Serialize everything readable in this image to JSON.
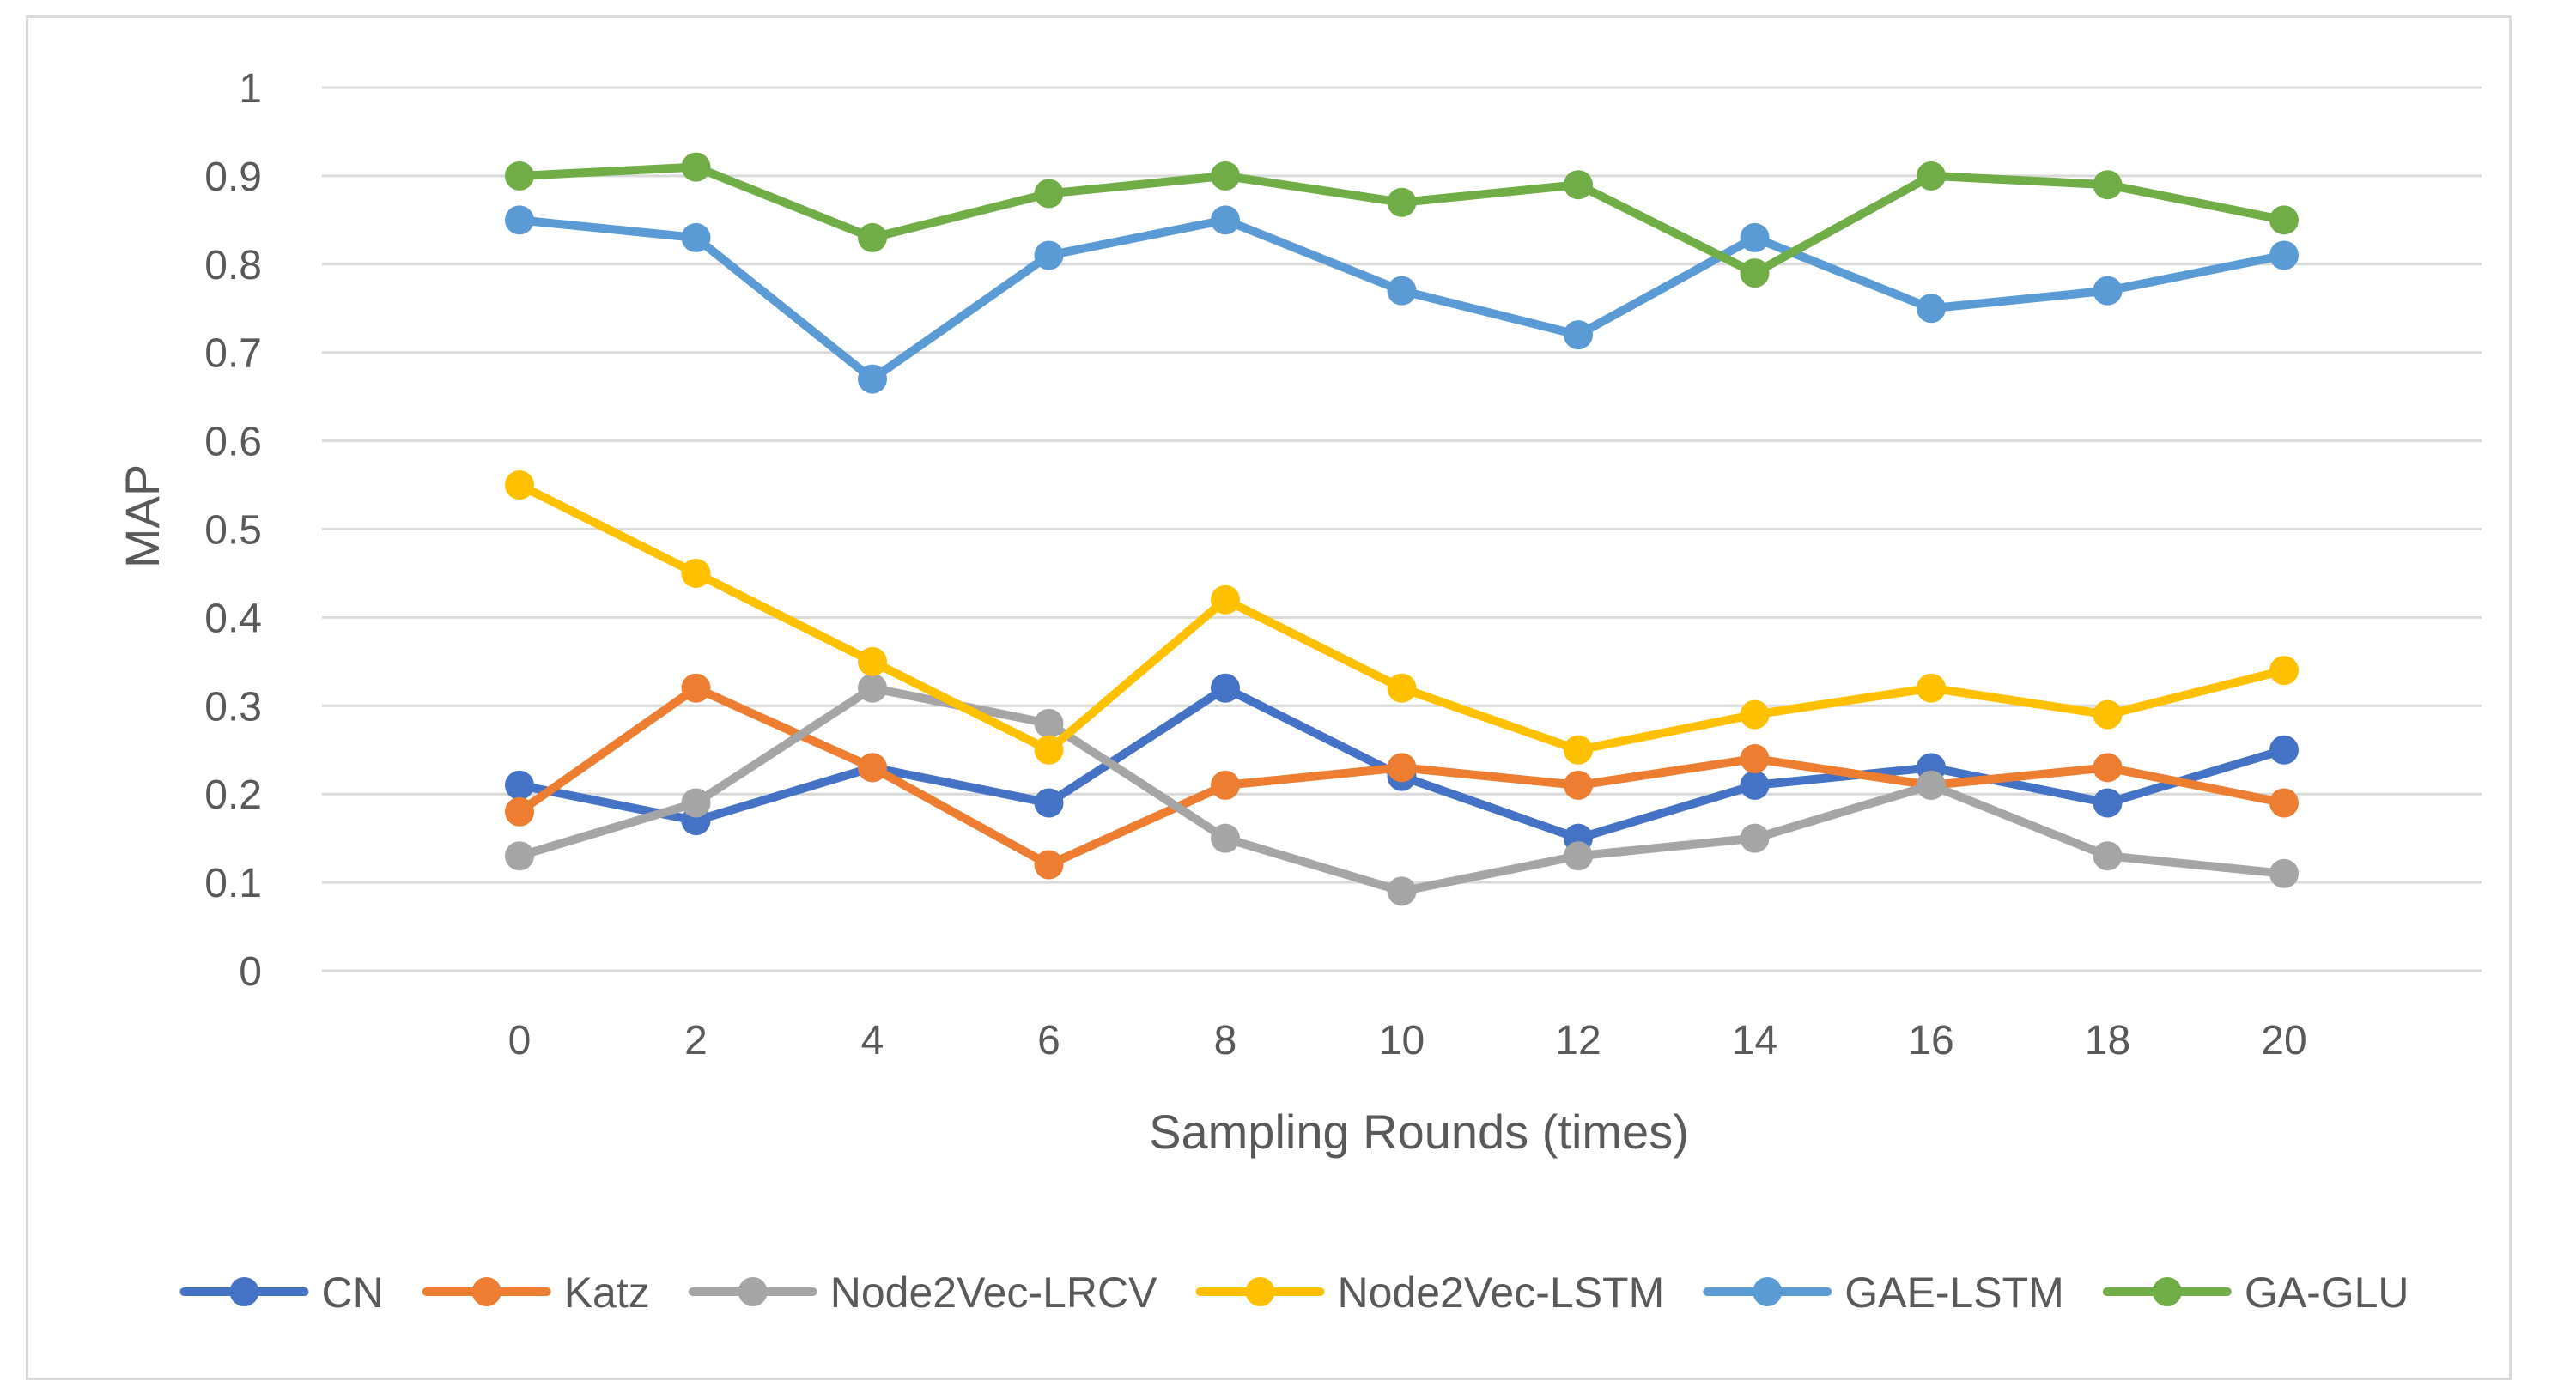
{
  "chart_data": {
    "type": "line",
    "title": "",
    "xlabel": "Sampling Rounds (times)",
    "ylabel": "MAP",
    "x": [
      0,
      2,
      4,
      6,
      8,
      10,
      12,
      14,
      16,
      18,
      20
    ],
    "xticks": [
      "0",
      "2",
      "4",
      "6",
      "8",
      "10",
      "12",
      "14",
      "16",
      "18",
      "20"
    ],
    "ylim": [
      0,
      1
    ],
    "yticks": [
      "0",
      "0.1",
      "0.2",
      "0.3",
      "0.4",
      "0.5",
      "0.6",
      "0.7",
      "0.8",
      "0.9",
      "1"
    ],
    "grid": "horizontal",
    "legend": "bottom",
    "series": [
      {
        "name": "CN",
        "color": "#4472c4",
        "values": [
          0.21,
          0.17,
          0.23,
          0.19,
          0.32,
          0.22,
          0.15,
          0.21,
          0.23,
          0.19,
          0.25
        ]
      },
      {
        "name": "Katz",
        "color": "#ed7d31",
        "values": [
          0.18,
          0.32,
          0.23,
          0.12,
          0.21,
          0.23,
          0.21,
          0.24,
          0.21,
          0.23,
          0.19
        ]
      },
      {
        "name": "Node2Vec-LRCV",
        "color": "#a5a5a5",
        "values": [
          0.13,
          0.19,
          0.32,
          0.28,
          0.15,
          0.09,
          0.13,
          0.15,
          0.21,
          0.13,
          0.11
        ]
      },
      {
        "name": "Node2Vec-LSTM",
        "color": "#ffc000",
        "values": [
          0.55,
          0.45,
          0.35,
          0.25,
          0.42,
          0.32,
          0.25,
          0.29,
          0.32,
          0.29,
          0.34
        ]
      },
      {
        "name": "GAE-LSTM",
        "color": "#5b9bd5",
        "values": [
          0.85,
          0.83,
          0.67,
          0.81,
          0.85,
          0.77,
          0.72,
          0.83,
          0.75,
          0.77,
          0.81
        ]
      },
      {
        "name": "GA-GLU",
        "color": "#70ad47",
        "values": [
          0.9,
          0.91,
          0.83,
          0.88,
          0.9,
          0.87,
          0.89,
          0.79,
          0.9,
          0.89,
          0.85
        ]
      }
    ]
  }
}
